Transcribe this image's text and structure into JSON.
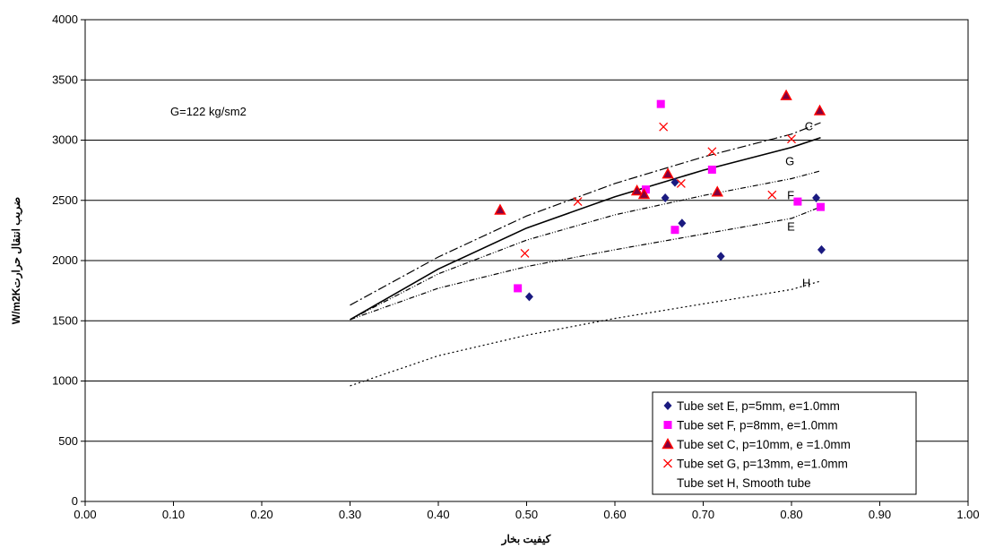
{
  "chart_data": {
    "type": "scatter",
    "title": "",
    "xlabel": "کیفیت بخار",
    "ylabel": "W/m2Kضریب انتقال حرارت",
    "xlim": [
      0,
      1
    ],
    "ylim": [
      0,
      4000
    ],
    "x_ticks": [
      "0.00",
      "0.10",
      "0.20",
      "0.30",
      "0.40",
      "0.50",
      "0.60",
      "0.70",
      "0.80",
      "0.90",
      "1.00"
    ],
    "y_ticks": [
      "0",
      "500",
      "1000",
      "1500",
      "2000",
      "2500",
      "3000",
      "3500",
      "4000"
    ],
    "grid": "horizontal",
    "legend_position": "bottom-right",
    "annotation": "G=122 kg/sm2",
    "curve_labels": [
      {
        "text": "C",
        "x": 0.815,
        "y": 3080
      },
      {
        "text": "G",
        "x": 0.793,
        "y": 2790
      },
      {
        "text": "F",
        "x": 0.795,
        "y": 2510
      },
      {
        "text": "E",
        "x": 0.795,
        "y": 2250
      },
      {
        "text": "H",
        "x": 0.812,
        "y": 1780
      }
    ],
    "series": [
      {
        "name": "Tube set E, p=5mm, e=1.0mm",
        "marker": "diamond",
        "color": "#1a1a80",
        "points": [
          [
            0.503,
            1700
          ],
          [
            0.657,
            2520
          ],
          [
            0.668,
            2650
          ],
          [
            0.676,
            2310
          ],
          [
            0.72,
            2035
          ],
          [
            0.828,
            2520
          ],
          [
            0.834,
            2090
          ]
        ]
      },
      {
        "name": "Tube set F, p=8mm, e=1.0mm",
        "marker": "square",
        "color": "#ff00ff",
        "points": [
          [
            0.49,
            1770
          ],
          [
            0.635,
            2590
          ],
          [
            0.652,
            3300
          ],
          [
            0.668,
            2255
          ],
          [
            0.71,
            2755
          ],
          [
            0.807,
            2490
          ],
          [
            0.833,
            2445
          ]
        ]
      },
      {
        "name": "Tube set C, p=10mm, e =1.0mm",
        "marker": "triangle",
        "color": "#800040",
        "edge": "#ff0000",
        "points": [
          [
            0.47,
            2420
          ],
          [
            0.625,
            2580
          ],
          [
            0.633,
            2550
          ],
          [
            0.66,
            2720
          ],
          [
            0.716,
            2570
          ],
          [
            0.794,
            3370
          ],
          [
            0.832,
            3245
          ]
        ]
      },
      {
        "name": "Tube set G, p=13mm, e=1.0mm",
        "marker": "x",
        "color": "#ff0000",
        "points": [
          [
            0.498,
            2060
          ],
          [
            0.558,
            2490
          ],
          [
            0.655,
            3110
          ],
          [
            0.675,
            2640
          ],
          [
            0.71,
            2905
          ],
          [
            0.778,
            2545
          ],
          [
            0.8,
            3010
          ]
        ]
      },
      {
        "name": "Tube set H, Smooth tube",
        "marker": "none",
        "color": "#000000",
        "points": []
      }
    ],
    "fit_curves": [
      {
        "label": "C",
        "style": "dashdot",
        "points": [
          [
            0.3,
            1630
          ],
          [
            0.4,
            2030
          ],
          [
            0.5,
            2370
          ],
          [
            0.6,
            2640
          ],
          [
            0.7,
            2860
          ],
          [
            0.8,
            3050
          ],
          [
            0.833,
            3145
          ]
        ]
      },
      {
        "label": "G",
        "style": "solid",
        "points": [
          [
            0.3,
            1510
          ],
          [
            0.4,
            1930
          ],
          [
            0.5,
            2270
          ],
          [
            0.6,
            2530
          ],
          [
            0.7,
            2750
          ],
          [
            0.8,
            2940
          ],
          [
            0.833,
            3020
          ]
        ]
      },
      {
        "label": "F",
        "style": "dashdotdot",
        "points": [
          [
            0.3,
            1510
          ],
          [
            0.4,
            1890
          ],
          [
            0.5,
            2170
          ],
          [
            0.6,
            2380
          ],
          [
            0.7,
            2540
          ],
          [
            0.8,
            2680
          ],
          [
            0.833,
            2745
          ]
        ]
      },
      {
        "label": "E",
        "style": "dashdotdot",
        "points": [
          [
            0.3,
            1510
          ],
          [
            0.4,
            1770
          ],
          [
            0.5,
            1950
          ],
          [
            0.6,
            2090
          ],
          [
            0.7,
            2220
          ],
          [
            0.8,
            2350
          ],
          [
            0.833,
            2445
          ]
        ]
      },
      {
        "label": "H",
        "style": "dotted",
        "points": [
          [
            0.3,
            960
          ],
          [
            0.4,
            1210
          ],
          [
            0.5,
            1380
          ],
          [
            0.6,
            1520
          ],
          [
            0.7,
            1640
          ],
          [
            0.8,
            1760
          ],
          [
            0.833,
            1830
          ]
        ]
      }
    ]
  }
}
